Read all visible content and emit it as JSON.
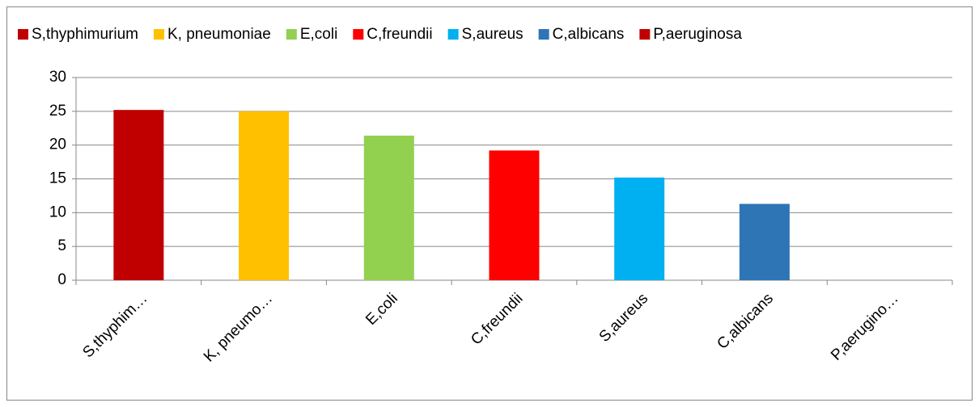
{
  "chart_data": {
    "type": "bar",
    "categories": [
      "S,thyphim…",
      "K, pneumo…",
      "E,coli",
      "C,freundii",
      "S,aureus",
      "C,albicans",
      "P,aerugino…"
    ],
    "legend_labels": [
      "S,thyphimurium",
      "K, pneumoniae",
      "E,coli",
      "C,freundii",
      "S,aureus",
      "C,albicans",
      "P,aeruginosa"
    ],
    "values": [
      25.2,
      25.0,
      21.4,
      19.2,
      15.2,
      11.3,
      0
    ],
    "colors": [
      "#c00000",
      "#ffc000",
      "#92d050",
      "#ff0000",
      "#00b0f0",
      "#2e75b6",
      "#c00000"
    ],
    "ylim": [
      0,
      30
    ],
    "yticks": [
      0,
      5,
      10,
      15,
      20,
      25,
      30
    ],
    "grid": true,
    "legend": "top"
  }
}
